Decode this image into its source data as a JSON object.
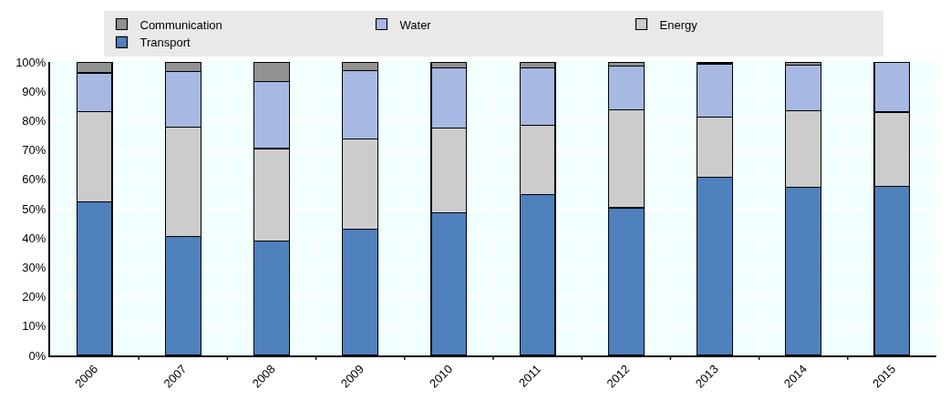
{
  "chart_data": {
    "type": "bar",
    "stacked": true,
    "categories": [
      "2006",
      "2007",
      "2008",
      "2009",
      "2010",
      "2011",
      "2012",
      "2013",
      "2014",
      "2015"
    ],
    "series": [
      {
        "name": "Transport",
        "color": "#4f81bd",
        "values": [
          52.4,
          40.6,
          38.9,
          43.0,
          48.5,
          54.7,
          50.3,
          60.8,
          57.3,
          57.6
        ]
      },
      {
        "name": "Energy",
        "color": "#cccccc",
        "values": [
          30.6,
          37.2,
          31.6,
          30.7,
          28.9,
          23.7,
          33.4,
          20.3,
          26.1,
          25.3
        ]
      },
      {
        "name": "Water",
        "color": "#a7b9e3",
        "values": [
          13.3,
          18.9,
          22.8,
          23.4,
          20.5,
          19.5,
          15.0,
          18.3,
          15.4,
          17.0
        ]
      },
      {
        "name": "Communication",
        "color": "#929292",
        "values": [
          3.7,
          3.3,
          6.7,
          2.9,
          2.1,
          2.1,
          1.3,
          0.6,
          1.2,
          0.1
        ]
      }
    ],
    "ylim": [
      0,
      100
    ],
    "yticks": [
      {
        "value": 0,
        "label": "0%"
      },
      {
        "value": 10,
        "label": "10%"
      },
      {
        "value": 20,
        "label": "20%"
      },
      {
        "value": 30,
        "label": "30%"
      },
      {
        "value": 40,
        "label": "40%"
      },
      {
        "value": 50,
        "label": "50%"
      },
      {
        "value": 60,
        "label": "60%"
      },
      {
        "value": 70,
        "label": "70%"
      },
      {
        "value": 80,
        "label": "80%"
      },
      {
        "value": 90,
        "label": "90%"
      },
      {
        "value": 100,
        "label": "100%"
      }
    ],
    "grid": true,
    "legend": "top"
  }
}
